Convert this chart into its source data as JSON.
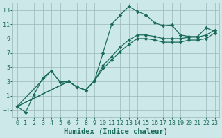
{
  "xlabel": "Humidex (Indice chaleur)",
  "ylabel": "",
  "bg_color": "#cce8e8",
  "grid_color": "#9ab8b8",
  "line_color": "#1a6b5a",
  "xlim": [
    -0.5,
    23.5
  ],
  "ylim": [
    -2,
    14
  ],
  "xticks": [
    0,
    1,
    2,
    3,
    4,
    5,
    6,
    7,
    8,
    9,
    10,
    11,
    12,
    13,
    14,
    15,
    16,
    17,
    18,
    19,
    20,
    21,
    22,
    23
  ],
  "yticks": [
    -1,
    1,
    3,
    5,
    7,
    9,
    11,
    13
  ],
  "lines": [
    {
      "x": [
        0,
        1,
        2,
        3,
        4,
        5,
        6,
        7,
        8,
        9,
        10,
        11,
        12,
        13,
        14,
        15,
        16,
        17,
        18,
        19,
        20,
        21,
        22,
        23
      ],
      "y": [
        -0.5,
        -1.3,
        1.2,
        3.5,
        4.5,
        2.9,
        3.0,
        2.2,
        1.8,
        3.1,
        7.0,
        11.0,
        12.3,
        13.5,
        12.8,
        12.3,
        11.2,
        10.8,
        10.9,
        9.5,
        9.3,
        9.3,
        10.5,
        10.0
      ]
    },
    {
      "x": [
        0,
        6,
        7,
        8,
        9,
        10,
        11,
        12,
        13,
        14,
        15,
        16,
        17,
        18,
        19,
        20,
        21,
        22,
        23
      ],
      "y": [
        -0.5,
        3.0,
        2.2,
        1.8,
        3.1,
        5.2,
        6.5,
        7.8,
        8.8,
        9.5,
        9.5,
        9.3,
        9.0,
        9.0,
        9.0,
        9.2,
        9.2,
        9.5,
        10.2
      ]
    },
    {
      "x": [
        0,
        6,
        7,
        8,
        9,
        10,
        11,
        12,
        13,
        14,
        15,
        16,
        17,
        18,
        19,
        20,
        21,
        22,
        23
      ],
      "y": [
        -0.5,
        3.0,
        2.2,
        1.8,
        3.1,
        4.8,
        6.0,
        7.2,
        8.2,
        9.0,
        9.0,
        8.8,
        8.5,
        8.5,
        8.5,
        8.8,
        8.8,
        9.0,
        9.8
      ]
    },
    {
      "x": [
        0,
        4,
        5,
        6,
        7
      ],
      "y": [
        -0.5,
        4.5,
        2.9,
        3.0,
        2.2
      ]
    }
  ],
  "fontsize_tick": 6,
  "fontsize_label": 7.5
}
